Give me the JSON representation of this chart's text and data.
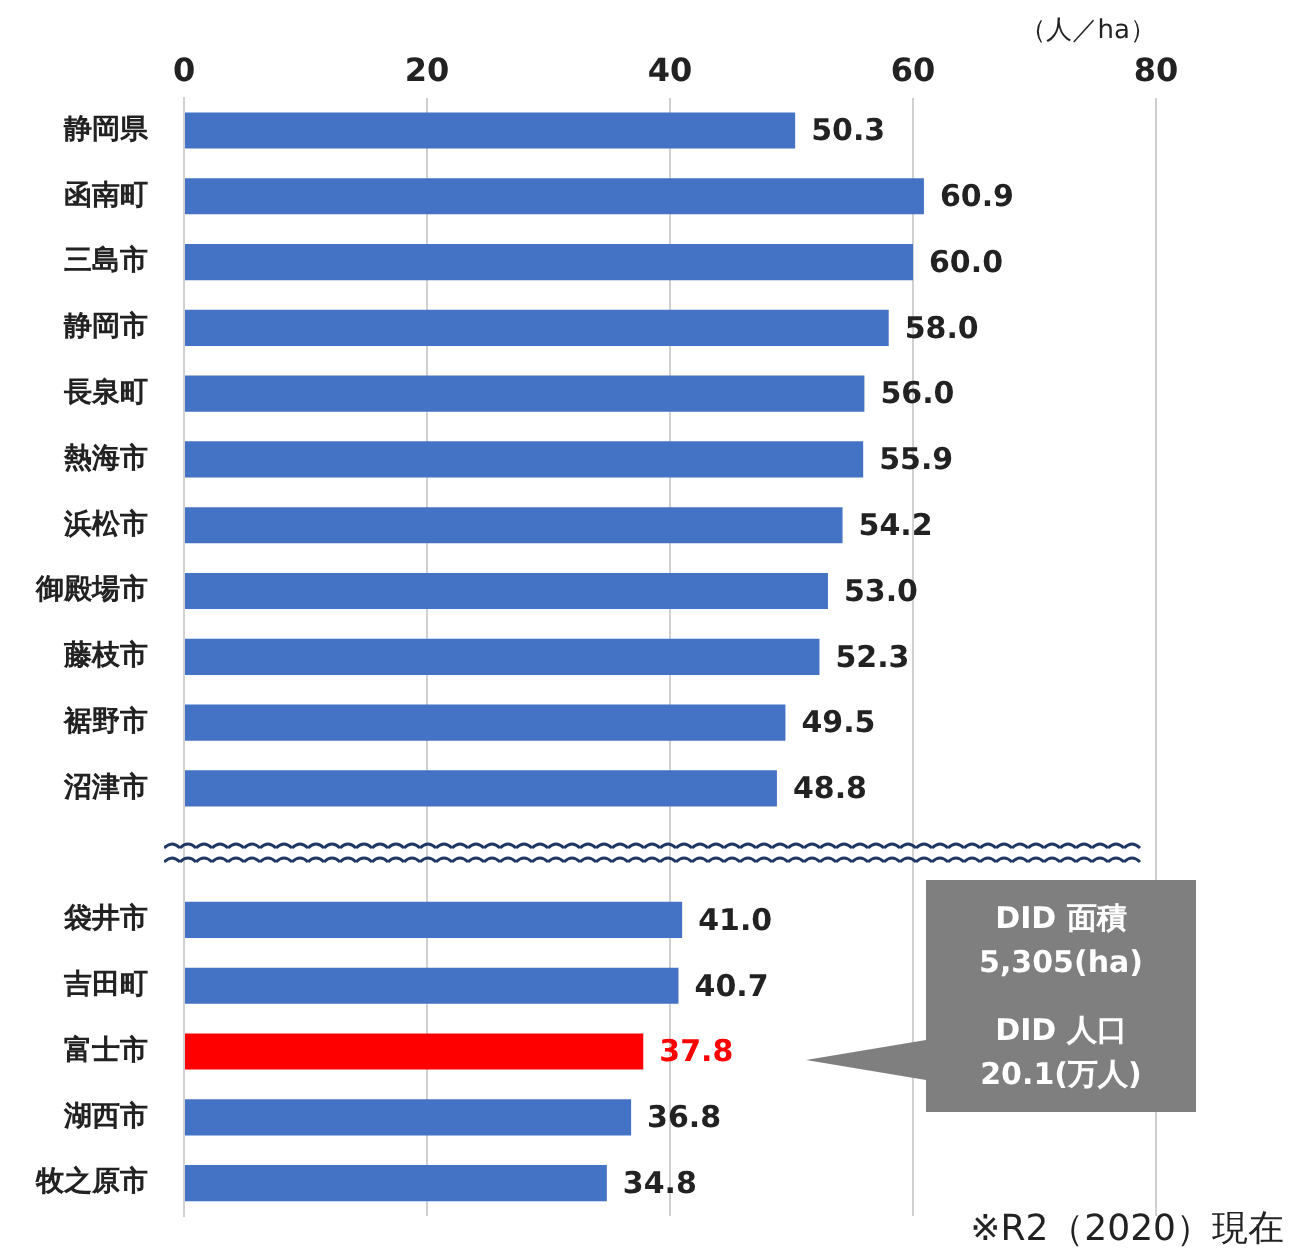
{
  "chart_data": {
    "type": "bar",
    "orientation": "horizontal",
    "xlabel": "（人／ha）",
    "categories": [
      "静岡県",
      "函南町",
      "三島市",
      "静岡市",
      "長泉町",
      "熱海市",
      "浜松市",
      "御殿場市",
      "藤枝市",
      "裾野市",
      "沼津市",
      null,
      "袋井市",
      "吉田町",
      "富士市",
      "湖西市",
      "牧之原市"
    ],
    "values": [
      50.3,
      60.9,
      60.0,
      58.0,
      56.0,
      55.9,
      54.2,
      53.0,
      52.3,
      49.5,
      48.8,
      null,
      41.0,
      40.7,
      37.8,
      36.8,
      34.8
    ],
    "value_labels": [
      "50.3",
      "60.9",
      "60.0",
      "58.0",
      "56.0",
      "55.9",
      "54.2",
      "53.0",
      "52.3",
      "49.5",
      "48.8",
      null,
      "41.0",
      "40.7",
      "37.8",
      "36.8",
      "34.8"
    ],
    "color": "#4472c4",
    "colors": [
      "#4472c4",
      "#4472c4",
      "#4472c4",
      "#4472c4",
      "#4472c4",
      "#4472c4",
      "#4472c4",
      "#4472c4",
      "#4472c4",
      "#4472c4",
      "#4472c4",
      "#4472c4",
      "#4472c4",
      "#4472c4",
      "#ff0000",
      "#4472c4",
      "#4472c4"
    ],
    "xlim": [
      0,
      80
    ],
    "xticks": [
      0,
      20,
      40,
      60,
      80
    ],
    "grid": "x",
    "annotations": [
      "DID 面積 5,305(ha)",
      "DID 人口 20.1(万人)",
      "※R2（2020）現在"
    ]
  }
}
